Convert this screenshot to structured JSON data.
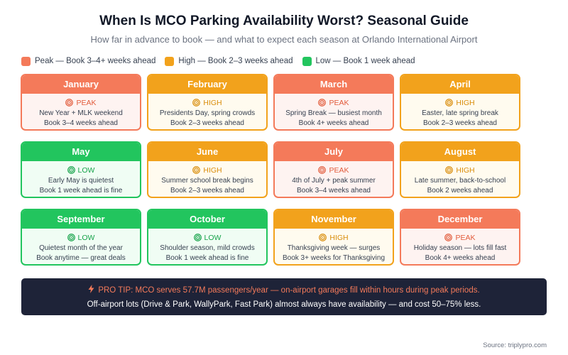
{
  "header": {
    "title": "When Is MCO Parking Availability Worst? Seasonal Guide",
    "subtitle": "How far in advance to book — and what to expect each season at Orlando International Airport"
  },
  "legend": [
    {
      "label": "Peak — Book 3–4+ weeks ahead",
      "color": "#f47a5a"
    },
    {
      "label": "High — Book 2–3 weeks ahead",
      "color": "#f2a21c"
    },
    {
      "label": "Low — Book 1 week ahead",
      "color": "#22c55e"
    }
  ],
  "months": [
    {
      "name": "January",
      "level": "peak",
      "level_label": "PEAK",
      "line1": "New Year + MLK weekend",
      "line2": "Book 3–4 weeks ahead"
    },
    {
      "name": "February",
      "level": "high",
      "level_label": "HIGH",
      "line1": "Presidents Day, spring crowds",
      "line2": "Book 2–3 weeks ahead"
    },
    {
      "name": "March",
      "level": "peak",
      "level_label": "PEAK",
      "line1": "Spring Break — busiest month",
      "line2": "Book 4+ weeks ahead"
    },
    {
      "name": "April",
      "level": "high",
      "level_label": "HIGH",
      "line1": "Easter, late spring break",
      "line2": "Book 2–3 weeks ahead"
    },
    {
      "name": "May",
      "level": "low",
      "level_label": "LOW",
      "line1": "Early May is quietest",
      "line2": "Book 1 week ahead is fine"
    },
    {
      "name": "June",
      "level": "high",
      "level_label": "HIGH",
      "line1": "Summer school break begins",
      "line2": "Book 2–3 weeks ahead"
    },
    {
      "name": "July",
      "level": "peak",
      "level_label": "PEAK",
      "line1": "4th of July + peak summer",
      "line2": "Book 3–4 weeks ahead"
    },
    {
      "name": "August",
      "level": "high",
      "level_label": "HIGH",
      "line1": "Late summer, back-to-school",
      "line2": "Book 2 weeks ahead"
    },
    {
      "name": "September",
      "level": "low",
      "level_label": "LOW",
      "line1": "Quietest month of the year",
      "line2": "Book anytime — great deals"
    },
    {
      "name": "October",
      "level": "low",
      "level_label": "LOW",
      "line1": "Shoulder season, mild crowds",
      "line2": "Book 1 week ahead is fine"
    },
    {
      "name": "November",
      "level": "high",
      "level_label": "HIGH",
      "line1": "Thanksgiving week — surges",
      "line2": "Book 3+ weeks for Thanksgiving"
    },
    {
      "name": "December",
      "level": "peak",
      "level_label": "PEAK",
      "line1": "Holiday season — lots fill fast",
      "line2": "Book 4+ weeks ahead"
    }
  ],
  "tip": {
    "icon": "lightning-bolt-icon",
    "line1": "PRO TIP: MCO serves 57.7M passengers/year — on-airport garages fill within hours during peak periods.",
    "line2": "Off-airport lots (Drive & Park, WallyPark, Fast Park) almost always have availability — and cost 50–75% less."
  },
  "source": "Source: triplypro.com",
  "level_colors": {
    "peak": "#e25c3c",
    "high": "#d98c09",
    "low": "#16a34a"
  }
}
